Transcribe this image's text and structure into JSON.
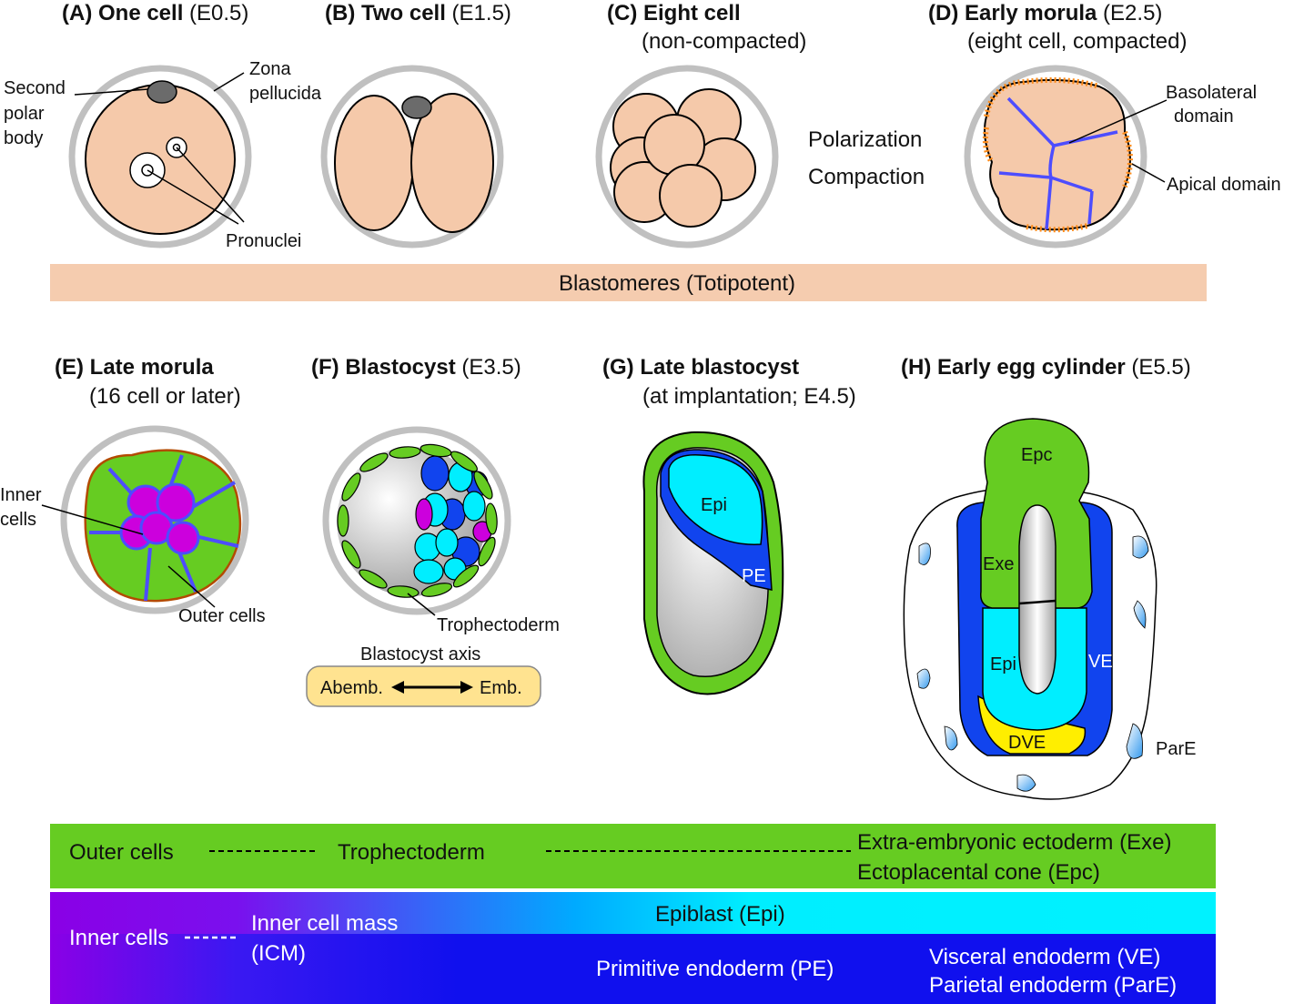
{
  "panels": {
    "A": {
      "letter": "(A) ",
      "name": "One cell",
      "stage": " (E0.5)"
    },
    "B": {
      "letter": "(B) ",
      "name": "Two cell",
      "stage": " (E1.5)"
    },
    "C": {
      "letter": "(C) ",
      "name": "Eight cell",
      "sub": "(non-compacted)"
    },
    "D": {
      "letter": "(D) ",
      "name": "Early morula",
      "stage": " (E2.5)",
      "sub": "(eight cell, compacted)"
    },
    "E": {
      "letter": "(E) ",
      "name": "Late morula",
      "sub": "(16 cell or later)"
    },
    "F": {
      "letter": "(F) ",
      "name": "Blastocyst",
      "stage": " (E3.5)"
    },
    "G": {
      "letter": "(G) ",
      "name": "Late blastocyst",
      "sub": "(at implantation; E4.5)"
    },
    "H": {
      "letter": "(H) ",
      "name": "Early egg cylinder",
      "stage": " (E5.5)"
    }
  },
  "labels": {
    "second_polar_body": [
      "Second",
      "polar",
      "body"
    ],
    "zona_pellucida": [
      "Zona",
      "pellucida"
    ],
    "pronuclei": "Pronuclei",
    "polarization": "Polarization",
    "compaction": "Compaction",
    "basolateral_domain": [
      "Basolateral",
      "domain"
    ],
    "apical_domain": "Apical domain",
    "inner_cells": [
      "Inner",
      "cells"
    ],
    "outer_cells": "Outer cells",
    "trophectoderm": "Trophectoderm",
    "blastocyst_axis": "Blastocyst axis",
    "abemb": "Abemb.",
    "emb": "Emb.",
    "epi": "Epi",
    "pe": "PE",
    "epc": "Epc",
    "exe": "Exe",
    "ve": "VE",
    "dve": "DVE",
    "pare": "ParE"
  },
  "bands": {
    "blastomeres": "Blastomeres (Totipotent)",
    "outer_cells": "Outer cells",
    "trophectoderm": "Trophectoderm",
    "exe": "Extra-embryonic ectoderm (Exe)",
    "epc": "Ectoplacental cone (Epc)",
    "inner_cells": "Inner cells",
    "icm": [
      "Inner cell mass",
      "(ICM)"
    ],
    "epiblast": "Epiblast (Epi)",
    "primitive_endoderm": "Primitive endoderm (PE)",
    "visceral_endoderm": "Visceral endoderm (VE)",
    "parietal_endoderm": "Parietal endoderm (ParE)"
  },
  "colors": {
    "blastomere": "#f5c9aa",
    "zona": "#c0c0c0",
    "polar_body": "#6b6b6b",
    "outer_green": "#66cc22",
    "inner_magenta": "#cc00dd",
    "junction_blue": "#4d4dff",
    "apical_orange": "#ff8c1a",
    "epiblast_cyan": "#00eeff",
    "endoderm_blue": "#1144ee",
    "dve_yellow": "#ffee00",
    "axis_box": "#ffe390",
    "band_peach": "#f5ccaf",
    "purple": "#8a00e6"
  }
}
